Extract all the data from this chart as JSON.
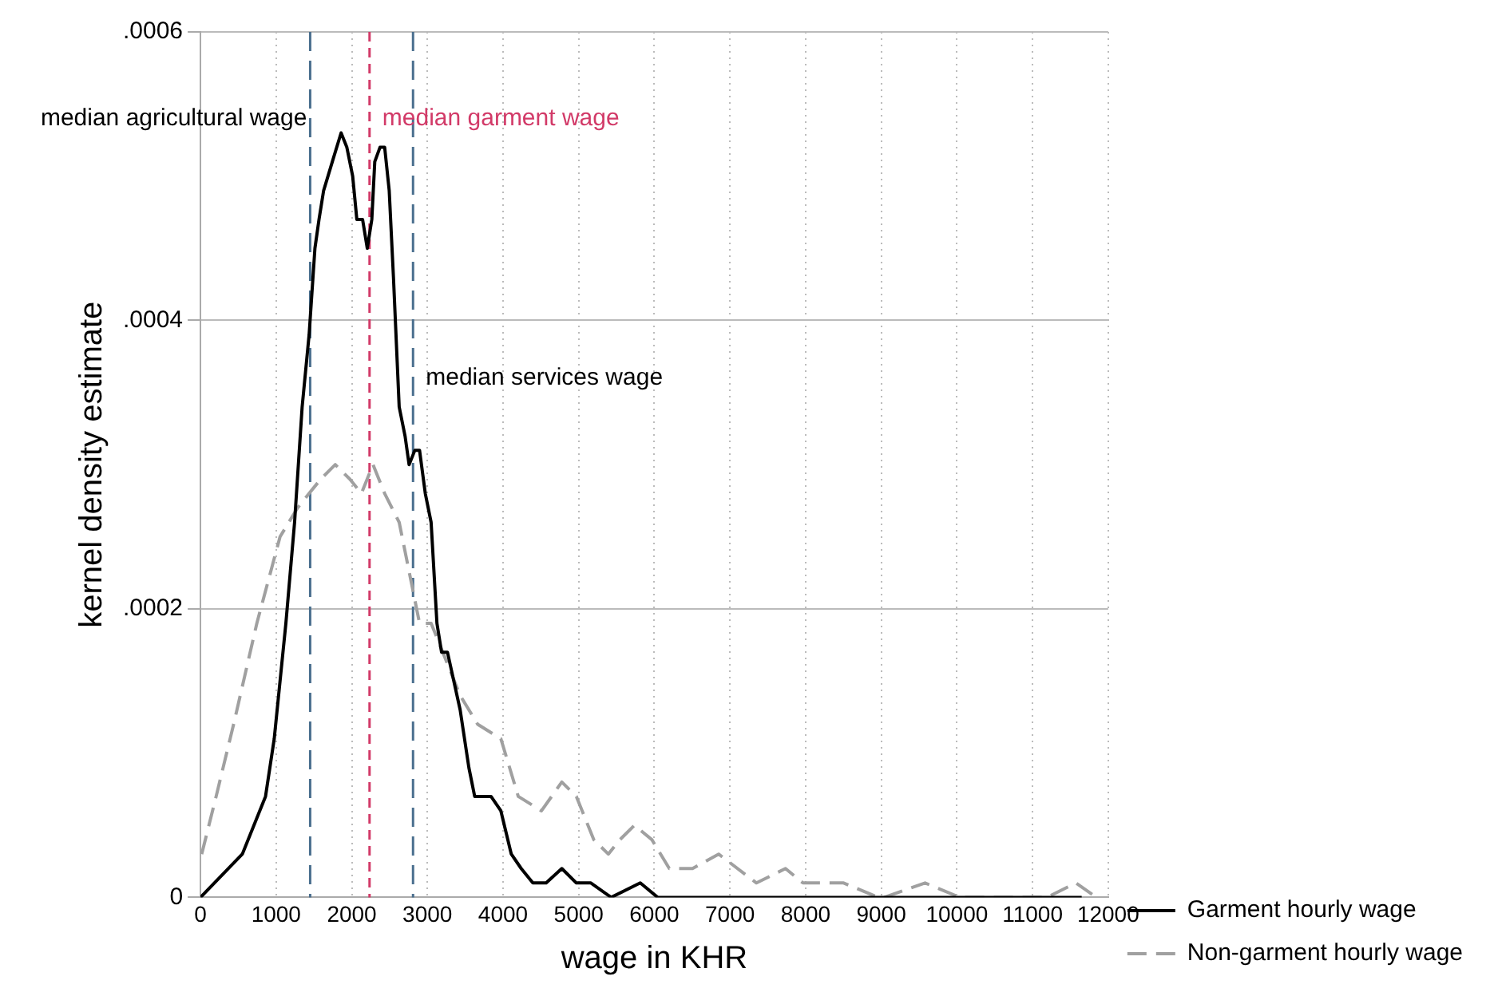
{
  "chart_data": {
    "type": "line",
    "xlabel": "wage in KHR",
    "ylabel": "kernel density estimate",
    "xlim": [
      0,
      12000
    ],
    "xticks": [
      0,
      1000,
      2000,
      3000,
      4000,
      5000,
      6000,
      7000,
      8000,
      9000,
      10000,
      11000,
      12000
    ],
    "ylim": [
      0,
      0.0006
    ],
    "yticks": [
      {
        "value": 0,
        "label": "0"
      },
      {
        "value": 0.0002,
        "label": ".0002"
      },
      {
        "value": 0.0004,
        "label": ".0004"
      },
      {
        "value": 0.0006,
        "label": ".0006"
      }
    ],
    "grid": true,
    "legend": "right",
    "marker": "none",
    "series": [
      {
        "name": "Garment hourly wage",
        "color": "#000000",
        "line_style": "solid",
        "x": [
          0,
          553,
          707,
          860,
          975,
          1129,
          1244,
          1344,
          1436,
          1513,
          1567,
          1628,
          1743,
          1859,
          1935,
          2012,
          2067,
          2143,
          2205,
          2265,
          2304,
          2373,
          2435,
          2495,
          2551,
          2627,
          2704,
          2758,
          2834,
          2896,
          2972,
          3049,
          3126,
          3187,
          3265,
          3433,
          3548,
          3625,
          3726,
          3841,
          3971,
          4109,
          4240,
          4394,
          4570,
          4777,
          4969,
          5161,
          5430,
          5814,
          6044,
          6505,
          6812,
          7043,
          7734,
          8041,
          8655,
          9500,
          10500,
          11650
        ],
        "values": [
          0,
          3e-05,
          5e-05,
          7e-05,
          0.00011,
          0.00019,
          0.00026,
          0.00034,
          0.00039,
          0.00045,
          0.00047,
          0.00049,
          0.00051,
          0.00053,
          0.00052,
          0.0005,
          0.00047,
          0.00047,
          0.00045,
          0.00047,
          0.00051,
          0.00052,
          0.00052,
          0.00049,
          0.00043,
          0.00034,
          0.00032,
          0.0003,
          0.00031,
          0.00031,
          0.00028,
          0.00026,
          0.00019,
          0.00017,
          0.00017,
          0.00013,
          9e-05,
          7e-05,
          7e-05,
          7e-05,
          6e-05,
          3e-05,
          2e-05,
          1e-05,
          1e-05,
          2e-05,
          1e-05,
          1e-05,
          0,
          1e-05,
          0,
          0,
          0,
          0,
          0,
          0,
          0,
          0,
          0,
          0
        ]
      },
      {
        "name": "Non-garment hourly wage",
        "color": "#a0a0a0",
        "line_style": "dashed",
        "x": [
          16,
          207,
          438,
          745,
          1052,
          1283,
          1436,
          1590,
          1782,
          1974,
          2127,
          2281,
          2435,
          2627,
          2781,
          2896,
          3049,
          3203,
          3433,
          3664,
          3971,
          4201,
          4508,
          4777,
          4969,
          5199,
          5392,
          5545,
          5737,
          5968,
          6198,
          6505,
          6850,
          7350,
          7734,
          7965,
          8502,
          8963,
          9040,
          9579,
          10040,
          10576,
          11190,
          11574,
          11843
        ],
        "values": [
          3e-05,
          7e-05,
          0.00012,
          0.00019,
          0.00025,
          0.00027,
          0.00028,
          0.00029,
          0.0003,
          0.00029,
          0.00028,
          0.0003,
          0.00028,
          0.00026,
          0.00022,
          0.00019,
          0.00019,
          0.00017,
          0.00014,
          0.00012,
          0.00011,
          7e-05,
          6e-05,
          8e-05,
          7e-05,
          4e-05,
          3e-05,
          4e-05,
          5e-05,
          4e-05,
          2e-05,
          2e-05,
          3e-05,
          1e-05,
          2e-05,
          1e-05,
          1e-05,
          0,
          0,
          1e-05,
          0,
          0,
          0,
          1e-05,
          0
        ]
      }
    ],
    "ref_lines": [
      {
        "axis": "x",
        "value": 1450,
        "label": "median agricultural wage",
        "color": "#4a6f8e",
        "line_style": "dashed"
      },
      {
        "axis": "x",
        "value": 2235,
        "label": "median garment wage",
        "color": "#d23a68",
        "line_style": "dashed"
      },
      {
        "axis": "x",
        "value": 2810,
        "label": "median services wage",
        "color": "#4a6f8e",
        "line_style": "dashed"
      }
    ]
  }
}
